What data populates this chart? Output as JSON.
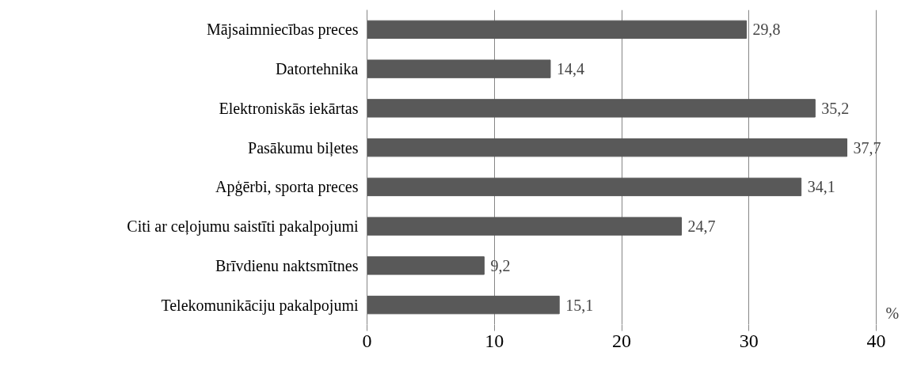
{
  "chart_data": {
    "type": "bar",
    "orientation": "horizontal",
    "xlabel": "%",
    "categories": [
      "Mājsaimniecības preces",
      "Datortehnika",
      "Elektroniskās iekārtas",
      "Pasākumu biļetes",
      "Apģērbi, sporta preces",
      "Citi ar ceļojumu saistīti pakalpojumi",
      "Brīvdienu naktsmītnes",
      "Telekomunikāciju pakalpojumi"
    ],
    "values": [
      29.8,
      14.4,
      35.2,
      37.7,
      34.1,
      24.7,
      9.2,
      15.1
    ],
    "value_labels": [
      "29,8",
      "14,4",
      "35,2",
      "37,7",
      "34,1",
      "24,7",
      "9,2",
      "15,1"
    ],
    "color": "#595959",
    "xlim": [
      0,
      40
    ],
    "xticks": [
      0,
      10,
      20,
      30,
      40
    ],
    "grid": "x"
  }
}
